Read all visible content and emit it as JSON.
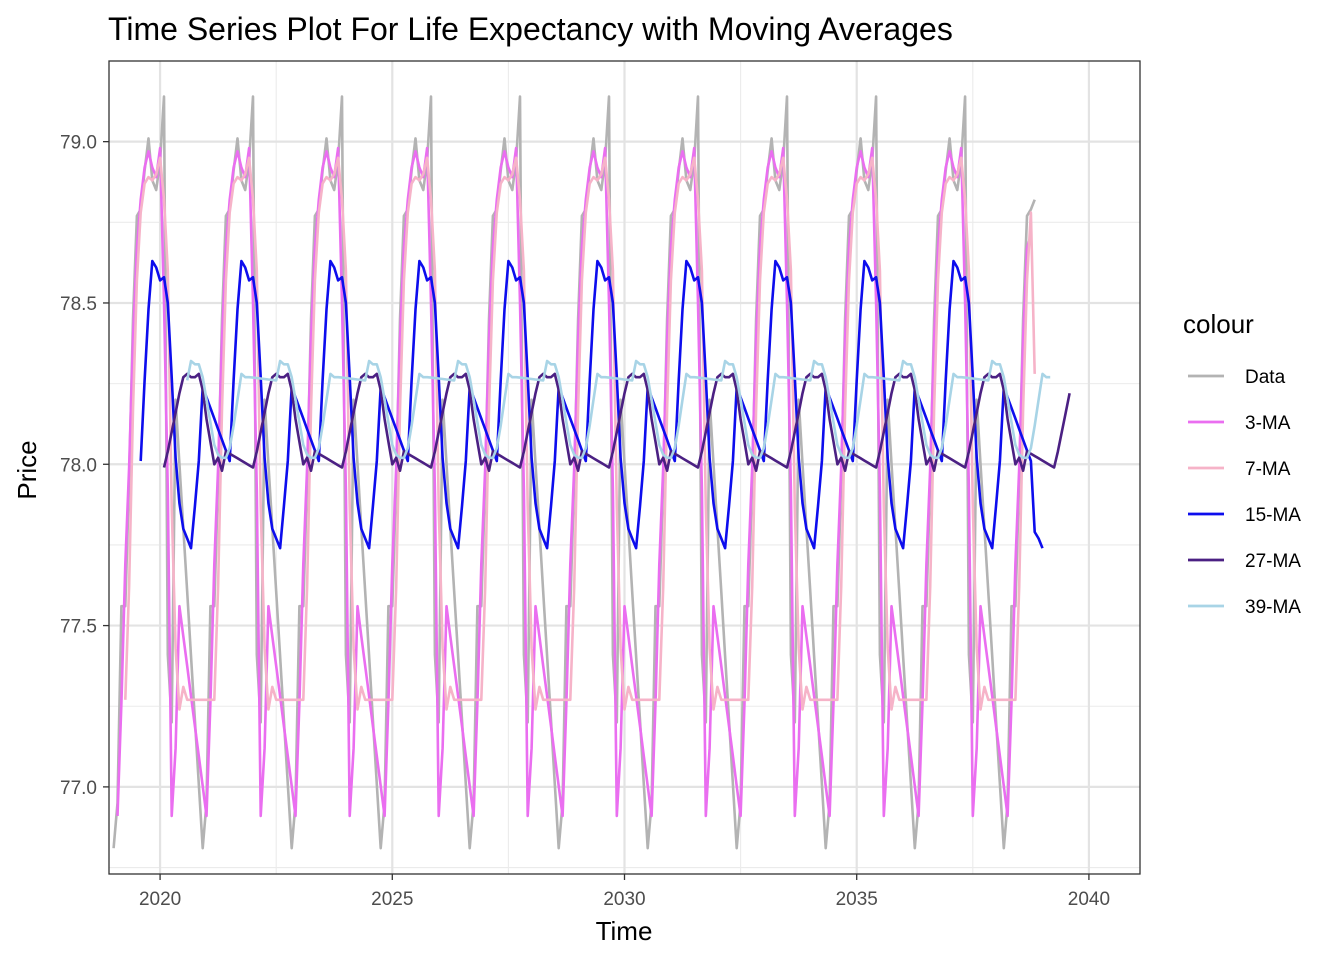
{
  "chart_data": {
    "type": "line",
    "title": "Time Series Plot For Life Expectancy with Moving Averages",
    "xlabel": "Time",
    "ylabel": "Price",
    "xlim": [
      2018.9,
      2041.1
    ],
    "ylim": [
      76.73,
      79.25
    ],
    "x_ticks": [
      2020,
      2025,
      2030,
      2035,
      2040
    ],
    "x_tick_labels": [
      "2020",
      "2025",
      "2030",
      "2035",
      "2040"
    ],
    "y_ticks": [
      77.0,
      77.5,
      78.0,
      78.5,
      79.0
    ],
    "y_tick_labels": [
      "77.0",
      "77.5",
      "78.0",
      "78.5",
      "79.0"
    ],
    "grid": true,
    "legend": {
      "title": "colour",
      "position": "right"
    },
    "x_start": 2019.0,
    "x_step": 0.083333,
    "period": 23,
    "series": [
      {
        "name": "Data",
        "color": "#b3b3b3",
        "offset": 0,
        "cycle_values": [
          76.81,
          76.95,
          77.56,
          77.56,
          77.95,
          78.45,
          78.77,
          78.79,
          78.91,
          79.01,
          78.88,
          78.85,
          78.94,
          79.14,
          77.41,
          77.2,
          78.2
        ],
        "cycles": 10,
        "tail": [
          76.81,
          76.95,
          77.56,
          77.56,
          77.95,
          78.45,
          78.77,
          78.79,
          78.82
        ]
      },
      {
        "name": "3-MA",
        "color": "#ea6ef0",
        "offset": 1,
        "cycle_values": [
          76.91,
          77.26,
          77.69,
          77.99,
          78.39,
          78.67,
          78.82,
          78.92,
          78.97,
          78.92,
          78.89,
          78.98,
          78.5,
          77.92,
          76.91,
          77.12,
          77.56
        ],
        "cycles": 10,
        "tail": [
          76.91,
          77.26,
          77.69,
          77.99,
          78.39,
          78.67,
          78.71
        ]
      },
      {
        "name": "7-MA",
        "color": "#f6b3c8",
        "offset": 3,
        "cycle_values": [
          77.27,
          77.62,
          78.17,
          78.57,
          78.78,
          78.87,
          78.89,
          78.88,
          78.9,
          78.95,
          78.82,
          78.6,
          77.87,
          77.43,
          77.24,
          77.31,
          77.27
        ],
        "cycles": 10,
        "tail": [
          77.27,
          77.62,
          78.17,
          78.57,
          78.78,
          78.28
        ]
      },
      {
        "name": "15-MA",
        "color": "#0d0ded",
        "offset": 7,
        "cycle_values": [
          78.01,
          78.26,
          78.48,
          78.63,
          78.61,
          78.57,
          78.58,
          78.5,
          78.27,
          78.02,
          77.88,
          77.8,
          77.77,
          77.74,
          77.87,
          78.01,
          78.24
        ],
        "cycles": 10,
        "tail": [
          78.01,
          77.79,
          77.77,
          77.74
        ]
      },
      {
        "name": "27-MA",
        "color": "#4b2083",
        "offset": 13,
        "cycle_values": [
          77.99,
          78.04,
          78.1,
          78.16,
          78.22,
          78.27,
          78.28,
          78.27,
          78.27,
          78.28,
          78.23,
          78.14,
          78.07,
          78.0,
          78.02,
          77.98,
          78.04
        ],
        "cycles": 10,
        "tail": [
          77.99,
          78.04,
          78.1,
          78.16,
          78.22
        ]
      },
      {
        "name": "39-MA",
        "color": "#a8d4e6",
        "offset": 19,
        "cycle_values": [
          78.26,
          78.32,
          78.31,
          78.31,
          78.27,
          78.2,
          78.13,
          78.06,
          78.03,
          78.02,
          78.02,
          78.05,
          78.12,
          78.2,
          78.28,
          78.27,
          78.27
        ],
        "cycles": 10,
        "tail": []
      }
    ]
  }
}
